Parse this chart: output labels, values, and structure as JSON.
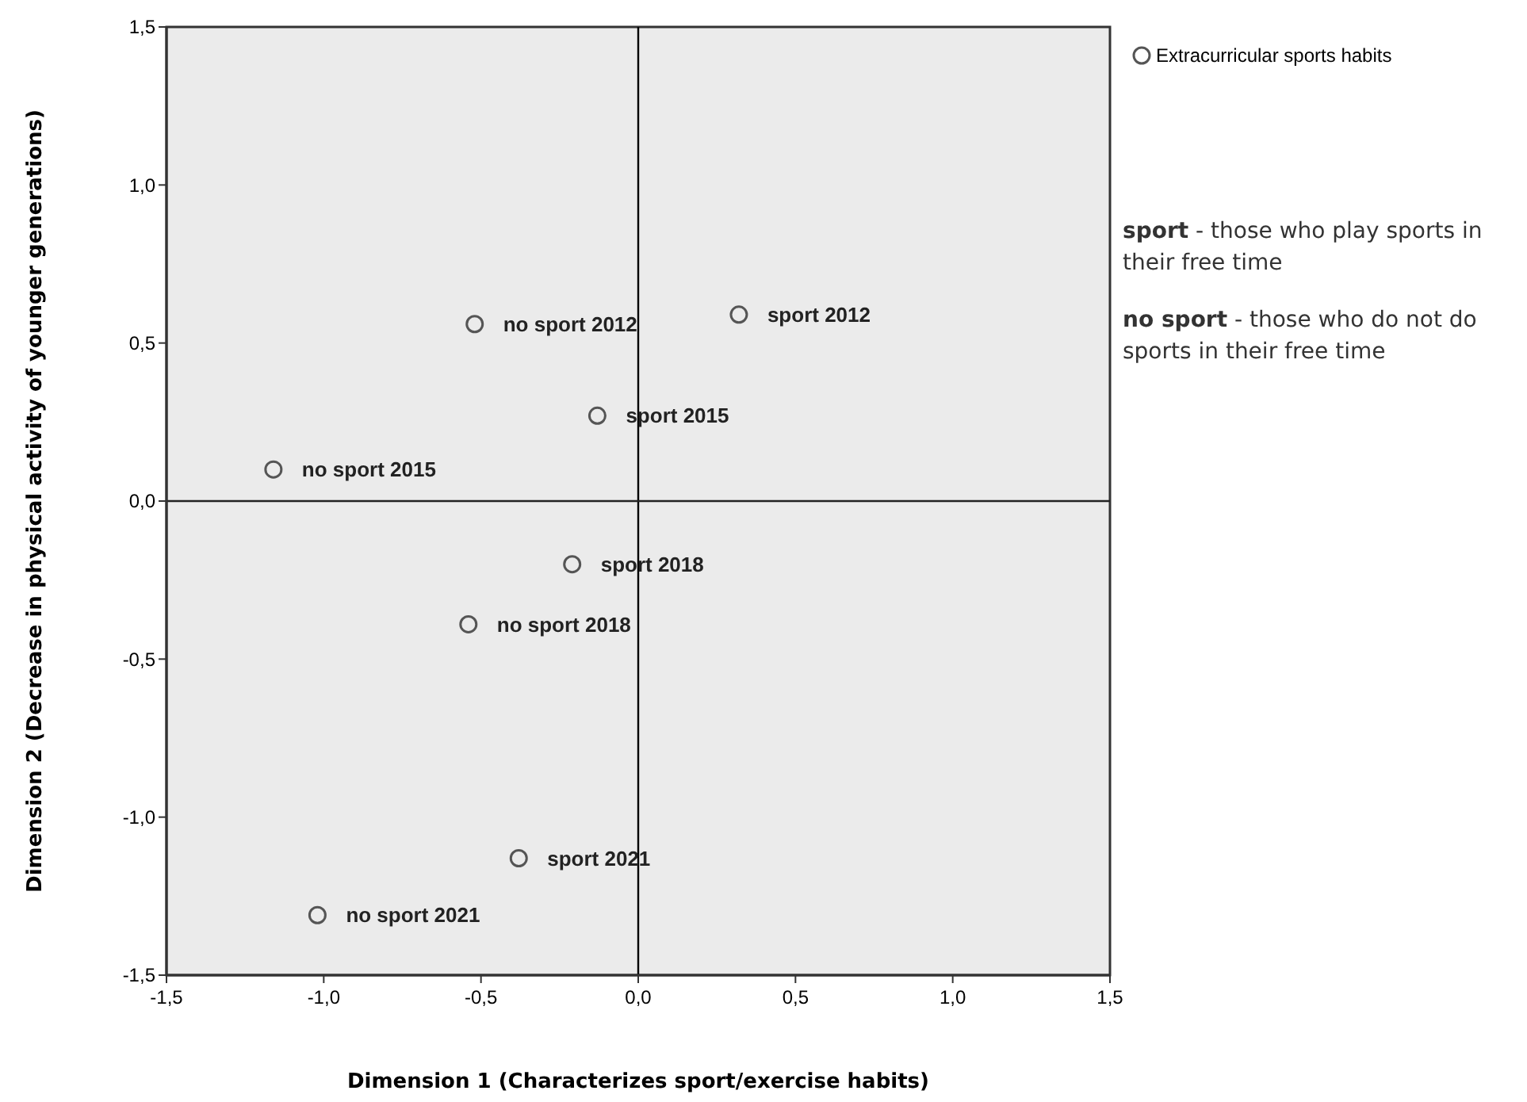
{
  "chart_data": {
    "type": "scatter",
    "xlabel": "Dimension 1 (Characterizes sport/exercise habits)",
    "ylabel": "Dimension 2 (Decrease in physical activity of younger generations)",
    "x": [
      -0.52,
      0.32,
      -0.13,
      -1.16,
      -0.21,
      -0.54,
      -0.38,
      -1.02
    ],
    "series": [
      {
        "name": "Extracurricular sports habits",
        "color": "#555555",
        "values": [
          0.56,
          0.59,
          0.27,
          0.1,
          -0.2,
          -0.39,
          -1.13,
          -1.31
        ]
      }
    ],
    "marker": "circle",
    "legend": "top right",
    "grid": false,
    "xlim": [
      -1.5,
      1.5
    ],
    "ylim": [
      -1.5,
      1.5
    ],
    "xticks": [
      {
        "value": -1.5,
        "label": "-1,5"
      },
      {
        "value": -1,
        "label": "-1,0"
      },
      {
        "value": -0.5,
        "label": "-0,5"
      },
      {
        "value": 0,
        "label": "0,0"
      },
      {
        "value": 0.5,
        "label": "0,5"
      },
      {
        "value": 1,
        "label": "1,0"
      },
      {
        "value": 1.5,
        "label": "1,5"
      }
    ],
    "yticks": [
      {
        "value": -1.5,
        "label": "-1,5"
      },
      {
        "value": -1,
        "label": "-1,0"
      },
      {
        "value": -0.5,
        "label": "-0,5"
      },
      {
        "value": 0,
        "label": "0,0"
      },
      {
        "value": 0.5,
        "label": "0,5"
      },
      {
        "value": 1,
        "label": "1,0"
      },
      {
        "value": 1.5,
        "label": "1,5"
      }
    ],
    "ref_lines": [
      {
        "axis": "x",
        "value": 0,
        "color": "#000000"
      },
      {
        "axis": "y",
        "value": 0,
        "color": "#222222"
      }
    ],
    "annotations": [
      {
        "text": "no sport 2012",
        "x": -0.52,
        "y": 0.56
      },
      {
        "text": "sport 2012",
        "x": 0.32,
        "y": 0.59
      },
      {
        "text": "sport 2015",
        "x": -0.13,
        "y": 0.27
      },
      {
        "text": "no sport 2015",
        "x": -1.16,
        "y": 0.1
      },
      {
        "text": "sport 2018",
        "x": -0.21,
        "y": -0.2
      },
      {
        "text": "no sport 2018",
        "x": -0.54,
        "y": -0.39
      },
      {
        "text": "sport 2021",
        "x": -0.38,
        "y": -1.13
      },
      {
        "text": "no sport 2021",
        "x": -1.02,
        "y": -1.31
      },
      "sport - those who play sports in their free time",
      "no sport - those who do not do sports in their free time"
    ]
  }
}
